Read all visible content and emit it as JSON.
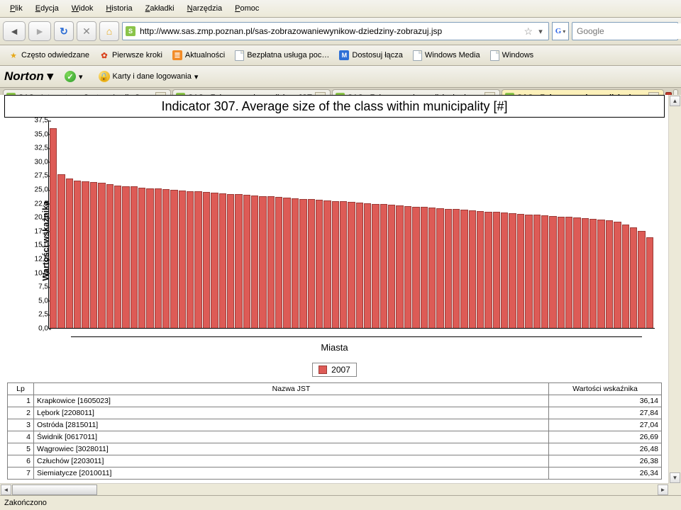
{
  "menu": {
    "items": [
      "Plik",
      "Edycja",
      "Widok",
      "Historia",
      "Zakładki",
      "Narzędzia",
      "Pomoc"
    ]
  },
  "url": "http://www.sas.zmp.poznan.pl/sas-zobrazowaniewynikow-dziedziny-zobrazuj.jsp",
  "search": {
    "placeholder": "Google"
  },
  "bookmarks": [
    {
      "label": "Często odwiedzane",
      "icon": "folder-star",
      "color": "#e6a817"
    },
    {
      "label": "Pierwsze kroki",
      "icon": "ff",
      "color": "#d9431f"
    },
    {
      "label": "Aktualności",
      "icon": "rss",
      "color": "#f28c28"
    },
    {
      "label": "Bezpłatna usługa poc…",
      "icon": "page"
    },
    {
      "label": "Dostosuj łącza",
      "icon": "m",
      "color": "#2e6fd6"
    },
    {
      "label": "Windows Media",
      "icon": "page"
    },
    {
      "label": "Windows",
      "icon": "page"
    }
  ],
  "norton": {
    "brand": "Norton",
    "karty": "Karty i dane logowania"
  },
  "tabs": [
    {
      "label": "SAS - Internetowy System Analiz Samo…",
      "active": false
    },
    {
      "label": "SAS - Zobrazowanie wyników - JST",
      "active": false
    },
    {
      "label": "SAS - Zobrazowanie wyników badań - I…",
      "active": false
    },
    {
      "label": "SAS - Zobrazowanie wyników ba…",
      "active": true
    }
  ],
  "chart": {
    "title": "Indicator 307. Average size of the class within municipality [#]",
    "ylabel": "Wartości wskaźnika",
    "xlabel": "Miasta",
    "legend": "2007",
    "ymax": 37.5,
    "yticks": [
      "37,5",
      "35,0",
      "32,5",
      "30,0",
      "27,5",
      "25,0",
      "22,5",
      "20,0",
      "17,5",
      "15,0",
      "12,5",
      "10,0",
      "7,5",
      "5,0",
      "2,5",
      "0,0"
    ],
    "ytick_vals": [
      37.5,
      35.0,
      32.5,
      30.0,
      27.5,
      25.0,
      22.5,
      20.0,
      17.5,
      15.0,
      12.5,
      10.0,
      7.5,
      5.0,
      2.5,
      0.0
    ],
    "bar_color": "#dd5b56",
    "bar_border": "#9c3b37",
    "values": [
      36.1,
      27.8,
      27.0,
      26.7,
      26.5,
      26.4,
      26.3,
      26.0,
      25.8,
      25.7,
      25.6,
      25.4,
      25.3,
      25.2,
      25.1,
      25.0,
      24.9,
      24.8,
      24.7,
      24.6,
      24.5,
      24.4,
      24.3,
      24.2,
      24.1,
      24.0,
      23.9,
      23.8,
      23.7,
      23.6,
      23.5,
      23.4,
      23.3,
      23.2,
      23.1,
      23.0,
      22.9,
      22.8,
      22.7,
      22.6,
      22.5,
      22.4,
      22.3,
      22.2,
      22.1,
      22.0,
      21.9,
      21.8,
      21.7,
      21.6,
      21.5,
      21.4,
      21.3,
      21.2,
      21.1,
      21.0,
      20.9,
      20.8,
      20.7,
      20.6,
      20.5,
      20.4,
      20.3,
      20.2,
      20.1,
      20.0,
      19.9,
      19.8,
      19.7,
      19.5,
      19.2,
      18.8,
      18.3,
      17.6,
      16.5
    ]
  },
  "table": {
    "headers": {
      "lp": "Lp",
      "name": "Nazwa JST",
      "val": "Wartości wskaźnika"
    },
    "rows": [
      {
        "lp": "1",
        "name": "Krapkowice [1605023]",
        "val": "36,14"
      },
      {
        "lp": "2",
        "name": "Lębork [2208011]",
        "val": "27,84"
      },
      {
        "lp": "3",
        "name": "Ostróda [2815011]",
        "val": "27,04"
      },
      {
        "lp": "4",
        "name": "Świdnik [0617011]",
        "val": "26,69"
      },
      {
        "lp": "5",
        "name": "Wągrowiec [3028011]",
        "val": "26,48"
      },
      {
        "lp": "6",
        "name": "Człuchów [2203011]",
        "val": "26,38"
      },
      {
        "lp": "7",
        "name": "Siemiatycze [2010011]",
        "val": "26,34"
      }
    ]
  },
  "status": "Zakończono"
}
